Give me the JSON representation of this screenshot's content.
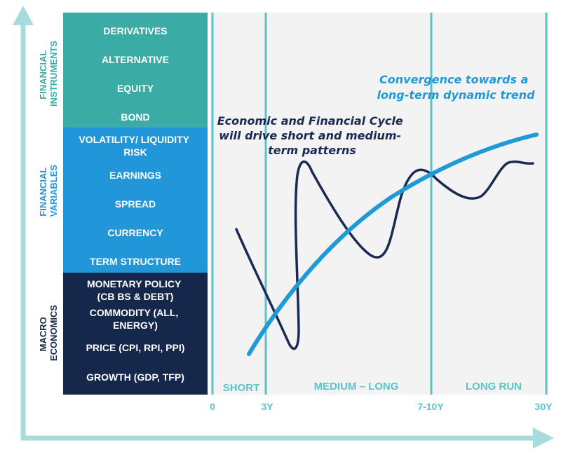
{
  "colors": {
    "axis": "#a8dcdc",
    "instruments_bg": "#3aaba5",
    "variables_bg": "#2196d8",
    "macro_bg": "#15284b",
    "chart_bg": "#f3f3f3",
    "phase_line": "#5bc3c8",
    "tick_text": "#5bc3c8",
    "cycle_curve": "#1a2a52",
    "trend_curve": "#1e9bd7"
  },
  "side_labels": {
    "instruments": [
      "FINANCIAL",
      "INSTRUMENTS"
    ],
    "variables": [
      "FINANCIAL",
      "VARIABLES"
    ],
    "macro": [
      "MACRO",
      "ECONOMICS"
    ]
  },
  "instruments": [
    {
      "lines": [
        "DERIVATIVES"
      ]
    },
    {
      "lines": [
        "ALTERNATIVE"
      ]
    },
    {
      "lines": [
        "EQUITY"
      ]
    },
    {
      "lines": [
        "BOND"
      ]
    }
  ],
  "variables": [
    {
      "lines": [
        "VOLATILITY/ LIQUIDITY",
        "RISK"
      ]
    },
    {
      "lines": [
        "EARNINGS"
      ]
    },
    {
      "lines": [
        "SPREAD"
      ]
    },
    {
      "lines": [
        "CURRENCY"
      ]
    },
    {
      "lines": [
        "TERM STRUCTURE"
      ]
    }
  ],
  "macro": [
    {
      "lines": [
        "MONETARY POLICY",
        "(CB BS & DEBT)"
      ]
    },
    {
      "lines": [
        "COMMODITY (ALL,",
        "ENERGY)"
      ]
    },
    {
      "lines": [
        "PRICE (CPI, RPI, PPI)"
      ]
    },
    {
      "lines": [
        "GROWTH (GDP, TFP)"
      ]
    }
  ],
  "phases": [
    {
      "label": "SHORT"
    },
    {
      "label": "MEDIUM – LONG"
    },
    {
      "label": "LONG RUN"
    }
  ],
  "x_ticks": [
    "0",
    "3Y",
    "7-10Y",
    "30Y"
  ],
  "annotations": {
    "cycle": [
      "Economic and Financial Cycle",
      "will drive short and medium-",
      "term patterns"
    ],
    "trend": [
      "Convergence towards a",
      "long-term dynamic trend"
    ]
  }
}
